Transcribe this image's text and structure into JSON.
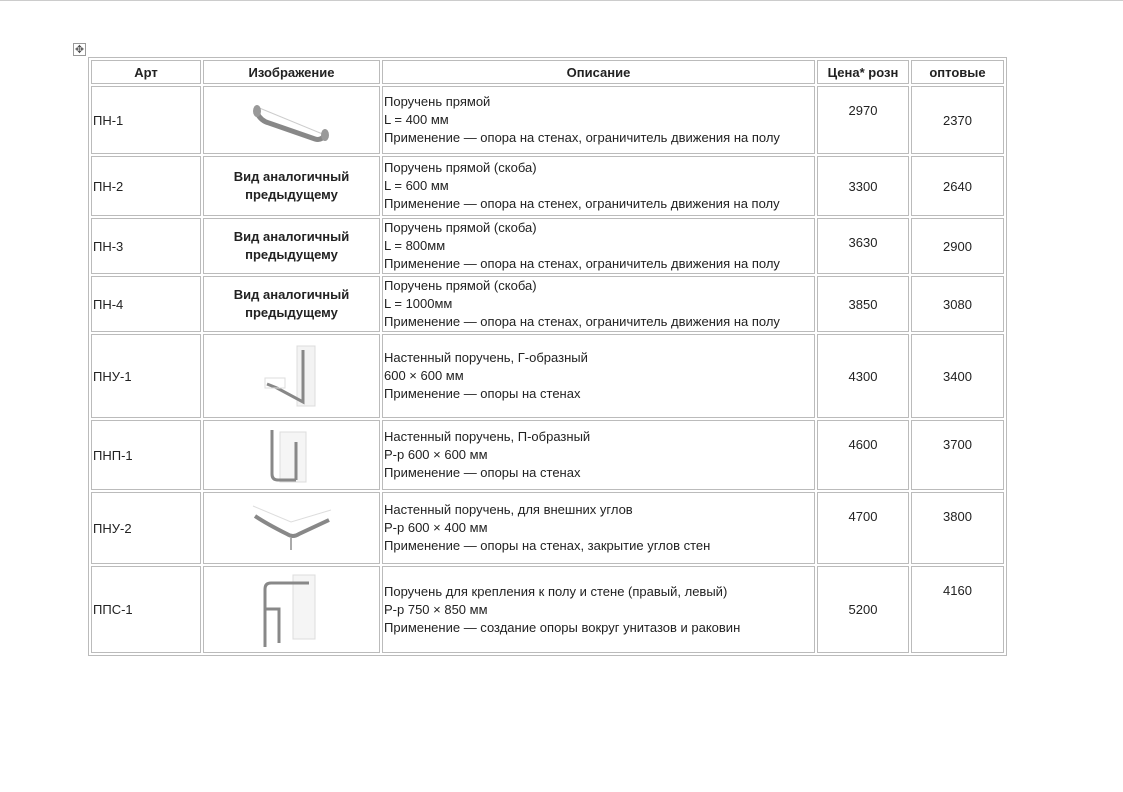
{
  "headers": {
    "art": "Арт",
    "image": "Изображение",
    "desc": "Описание",
    "retail": "Цена* розн",
    "wholesale": "оптовые"
  },
  "rows": [
    {
      "art": "ПН-1",
      "image": "straight-rail",
      "image_text": "",
      "desc": [
        "Поручень прямой",
        "L = 400 мм",
        "Применение — опора на стенах, ограничитель движения на полу"
      ],
      "retail": "2970",
      "wholesale": "2370"
    },
    {
      "art": "ПН-2",
      "image": "",
      "image_text": "Вид аналогичный предыдущему",
      "desc": [
        "Поручень прямой (скоба)",
        "L = 600 мм",
        "Применение — опора на стенех, ограничитель движения на полу"
      ],
      "retail": "3300",
      "wholesale": "2640"
    },
    {
      "art": "ПН-3",
      "image": "",
      "image_text": "Вид аналогичный предыдущему",
      "desc": [
        "Поручень прямой (скоба)",
        "L = 800мм",
        "Применение — опора на стенах, ограничитель движения на полу"
      ],
      "retail": "3630",
      "wholesale": "2900"
    },
    {
      "art": "ПН-4",
      "image": "",
      "image_text": "Вид аналогичный предыдущему",
      "desc": [
        "Поручень прямой (скоба)",
        "L = 1000мм",
        "Применение — опора на стенах, ограничитель движения на полу"
      ],
      "retail": "3850",
      "wholesale": "3080"
    },
    {
      "art": "ПНУ-1",
      "image": "l-shaped-rail",
      "image_text": "",
      "desc": [
        "Настенный поручень, Г-образный",
        "600 × 600 мм",
        "Применение — опоры на стенах"
      ],
      "retail": "4300",
      "wholesale": "3400"
    },
    {
      "art": "ПНП-1",
      "image": "u-shaped-rail",
      "image_text": "",
      "desc": [
        "Настенный поручень, П-образный",
        "Р-р 600 × 600 мм",
        "Применение — опоры на стенах"
      ],
      "retail": "4600",
      "wholesale": "3700"
    },
    {
      "art": "ПНУ-2",
      "image": "corner-rail",
      "image_text": "",
      "desc": [
        "Настенный поручень, для внешних углов",
        "Р-р 600 × 400 мм",
        "Применение — опоры на стенах, закрытие углов стен"
      ],
      "retail": "4700",
      "wholesale": "3800"
    },
    {
      "art": "ППС-1",
      "image": "floor-wall-rail",
      "image_text": "",
      "desc": [
        "Поручень для крепления к полу и стене (правый, левый)",
        "Р-р 750 × 850 мм",
        "Применение — создание опоры вокруг унитазов и раковин"
      ],
      "retail": "5200",
      "wholesale": "4160"
    }
  ]
}
